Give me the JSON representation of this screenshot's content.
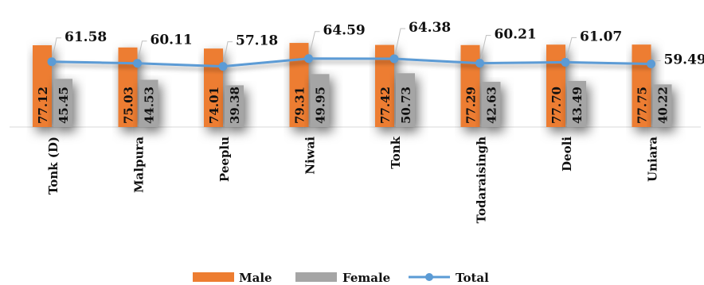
{
  "chart_data": {
    "type": "bar",
    "categories": [
      "Tonk (D)",
      "Malpura",
      "Peeplu",
      "Niwai",
      "Tonk",
      "Todaraisingh",
      "Deoli",
      "Uniara"
    ],
    "series": [
      {
        "name": "Male",
        "type": "bar",
        "color": "#ED7D31",
        "values": [
          77.12,
          75.03,
          74.01,
          79.31,
          77.42,
          77.29,
          77.7,
          77.75
        ]
      },
      {
        "name": "Female",
        "type": "bar",
        "color": "#A5A5A5",
        "values": [
          45.45,
          44.53,
          39.38,
          49.95,
          50.73,
          42.63,
          43.49,
          40.22
        ]
      },
      {
        "name": "Total",
        "type": "line",
        "color": "#5B9BD5",
        "values": [
          61.58,
          60.11,
          57.18,
          64.59,
          64.38,
          60.21,
          61.07,
          59.49
        ]
      }
    ],
    "ylim": [
      0,
      105
    ],
    "grid": false,
    "legend_position": "bottom",
    "title": "",
    "xlabel": "",
    "ylabel": ""
  }
}
